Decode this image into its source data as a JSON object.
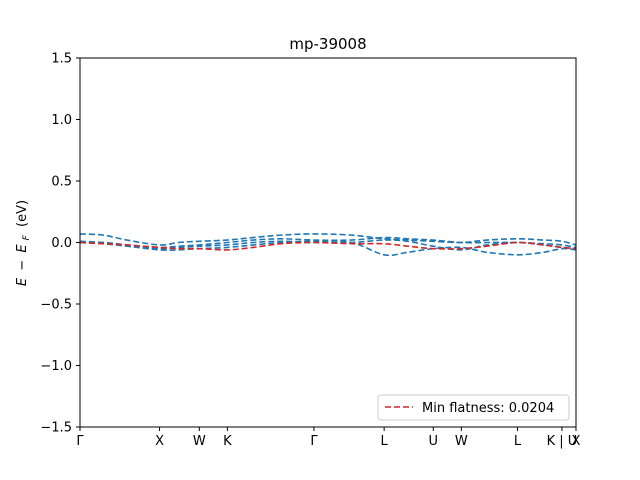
{
  "chart_data": {
    "type": "line",
    "title": "mp-39008",
    "xlabel": "",
    "ylabel_parts": {
      "e": "E",
      "minus": "−",
      "ef": "E",
      "sub": "F",
      "unit": "(eV)"
    },
    "ylim": [
      -1.5,
      1.5
    ],
    "yticks": [
      -1.5,
      -1.0,
      -0.5,
      0.0,
      0.5,
      1.0,
      1.5
    ],
    "ytick_labels": [
      "−1.5",
      "−1.0",
      "−0.5",
      "0.0",
      "0.5",
      "1.0",
      "1.5"
    ],
    "xlim": [
      0,
      10.6
    ],
    "xticks": [
      {
        "x": 0.0,
        "label": "Γ"
      },
      {
        "x": 1.7,
        "label": "X"
      },
      {
        "x": 2.55,
        "label": "W"
      },
      {
        "x": 3.15,
        "label": "K"
      },
      {
        "x": 5.0,
        "label": "Γ"
      },
      {
        "x": 6.5,
        "label": "L"
      },
      {
        "x": 7.55,
        "label": "U"
      },
      {
        "x": 8.15,
        "label": "W"
      },
      {
        "x": 9.35,
        "label": "L"
      },
      {
        "x": 10.3,
        "label": "K | U"
      },
      {
        "x": 10.6,
        "label": "X"
      }
    ],
    "grid": false,
    "legend": {
      "position": "lower-right",
      "label": "Min flatness: 0.0204"
    },
    "colors": {
      "bands": "#1f77b4",
      "highlight": "#d62728"
    },
    "series": [
      {
        "style": "dashed",
        "color": "#1f77b4",
        "x": [
          0,
          0.5,
          1.0,
          1.7,
          2.1,
          2.55,
          3.15,
          3.7,
          4.3,
          5.0,
          5.8,
          6.5,
          7.0,
          7.55,
          8.15,
          8.7,
          9.35,
          9.9,
          10.3,
          10.6
        ],
        "y": [
          0.07,
          0.06,
          0.02,
          -0.02,
          0.0,
          0.01,
          0.02,
          0.04,
          0.06,
          0.07,
          0.06,
          0.03,
          0.02,
          0.01,
          0.0,
          0.02,
          0.03,
          0.02,
          0.01,
          -0.02
        ]
      },
      {
        "style": "dashed",
        "color": "#1f77b4",
        "x": [
          0,
          0.5,
          1.0,
          1.7,
          2.1,
          2.55,
          3.15,
          3.7,
          4.3,
          5.0,
          5.8,
          6.5,
          7.0,
          7.55,
          8.15,
          8.7,
          9.35,
          9.9,
          10.3,
          10.6
        ],
        "y": [
          0.0,
          -0.01,
          -0.03,
          -0.06,
          -0.06,
          -0.05,
          -0.04,
          -0.02,
          0.0,
          0.01,
          0.0,
          -0.1,
          -0.08,
          -0.05,
          -0.04,
          -0.08,
          -0.1,
          -0.08,
          -0.05,
          -0.06
        ]
      },
      {
        "style": "dashed",
        "color": "#1f77b4",
        "x": [
          0,
          0.5,
          1.0,
          1.7,
          2.1,
          2.55,
          3.15,
          3.7,
          4.3,
          5.0,
          5.8,
          6.5,
          7.0,
          7.55,
          8.15,
          8.7,
          9.35,
          9.9,
          10.3,
          10.6
        ],
        "y": [
          0.01,
          0.0,
          -0.02,
          -0.04,
          -0.03,
          -0.02,
          0.0,
          0.02,
          0.03,
          0.02,
          0.02,
          0.04,
          0.03,
          0.02,
          0.0,
          0.0,
          0.0,
          -0.01,
          -0.02,
          -0.04
        ]
      },
      {
        "style": "dashed",
        "color": "#1f77b4",
        "x": [
          0,
          0.5,
          1.0,
          1.7,
          2.1,
          2.55,
          3.15,
          3.7,
          4.3,
          5.0,
          5.8,
          6.5,
          7.0,
          7.55,
          8.15,
          8.7,
          9.35,
          9.9,
          10.3,
          10.6
        ],
        "y": [
          0.0,
          0.0,
          -0.02,
          -0.05,
          -0.04,
          -0.03,
          -0.02,
          0.0,
          0.01,
          0.0,
          0.0,
          0.02,
          0.01,
          -0.03,
          -0.06,
          -0.02,
          0.0,
          -0.02,
          -0.04,
          -0.05
        ]
      },
      {
        "style": "dashed",
        "color": "#d62728",
        "x": [
          0,
          0.5,
          1.0,
          1.7,
          2.1,
          2.55,
          3.15,
          3.7,
          4.3,
          5.0,
          5.8,
          6.5,
          7.0,
          7.55,
          8.15,
          8.7,
          9.35,
          9.9,
          10.3,
          10.6
        ],
        "y": [
          0.0,
          -0.01,
          -0.02,
          -0.04,
          -0.05,
          -0.05,
          -0.06,
          -0.04,
          -0.01,
          0.0,
          -0.01,
          -0.01,
          -0.03,
          -0.05,
          -0.05,
          -0.03,
          0.0,
          -0.02,
          -0.04,
          -0.05
        ]
      }
    ]
  }
}
